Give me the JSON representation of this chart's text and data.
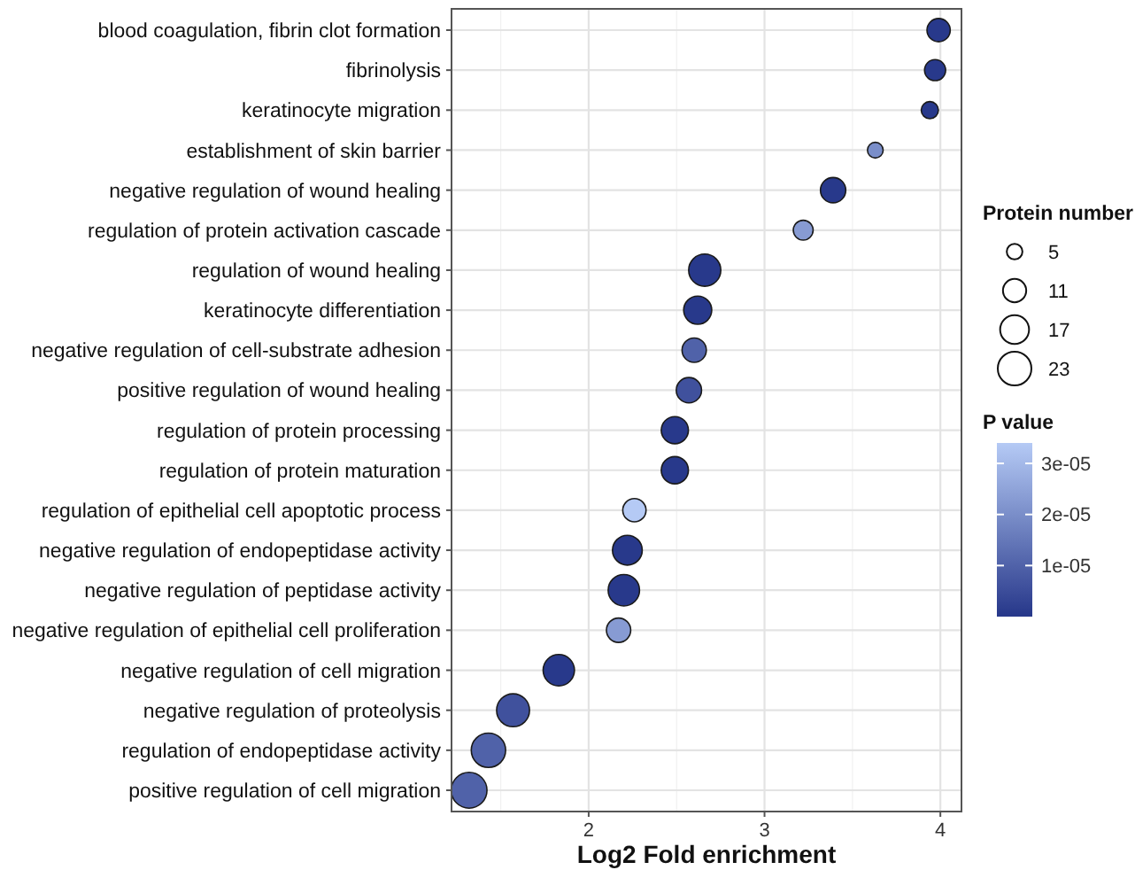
{
  "chart_data": {
    "type": "bubble",
    "orientation": "horizontal",
    "xlabel": "Log2 Fold enrichment",
    "legend_title": "Protein number",
    "clabel": "P value",
    "grid": true,
    "categories": [
      "blood coagulation, fibrin clot formation",
      "fibrinolysis",
      "keratinocyte migration",
      "establishment of skin barrier",
      "negative regulation of wound healing",
      "regulation of protein activation cascade",
      "regulation of wound healing",
      "keratinocyte differentiation",
      "negative regulation of cell-substrate adhesion",
      "positive regulation of wound healing",
      "regulation of protein processing",
      "regulation of protein maturation",
      "regulation of epithelial cell apoptotic process",
      "negative regulation of endopeptidase activity",
      "negative regulation of peptidase activity",
      "negative regulation of epithelial cell proliferation",
      "negative regulation of cell migration",
      "negative regulation of proteolysis",
      "regulation of endopeptidase activity",
      "positive regulation of cell migration"
    ],
    "xlim": [
      1.22,
      4.12
    ],
    "xticks": [
      2,
      3,
      4
    ],
    "size_legend": [
      5,
      11,
      17,
      23
    ],
    "clim": [
      0,
      3.4e-05
    ],
    "cticks": [
      {
        "value": 1e-05,
        "label": "1e-05"
      },
      {
        "value": 2e-05,
        "label": "2e-05"
      },
      {
        "value": 3e-05,
        "label": "3e-05"
      }
    ],
    "series": [
      {
        "values": [
          3.99,
          3.97,
          3.94,
          3.63,
          3.39,
          3.22,
          2.66,
          2.62,
          2.6,
          2.57,
          2.49,
          2.49,
          2.26,
          2.22,
          2.2,
          2.17,
          1.83,
          1.57,
          1.43,
          1.32
        ],
        "sizes": [
          11,
          9,
          6,
          5,
          13,
          8,
          21,
          16,
          12,
          13,
          15,
          15,
          11,
          18,
          20,
          12,
          20,
          22,
          24,
          26
        ],
        "cvalues": [
          5e-07,
          5e-07,
          5e-07,
          2e-05,
          5e-07,
          2.3e-05,
          5e-07,
          5e-07,
          1e-05,
          6e-06,
          5e-07,
          5e-07,
          3.4e-05,
          5e-07,
          5e-07,
          2.3e-05,
          5e-07,
          6e-06,
          1e-05,
          1e-05
        ],
        "colors": [
          "#28398b",
          "#28398b",
          "#28398b",
          "#7a8ec9",
          "#28398b",
          "#879bd3",
          "#28398b",
          "#28398b",
          "#5062a9",
          "#40519d",
          "#28398b",
          "#28398b",
          "#b5caf5",
          "#28398b",
          "#28398b",
          "#879bd3",
          "#28398b",
          "#40519d",
          "#5062a9",
          "#5062a9"
        ]
      }
    ]
  }
}
